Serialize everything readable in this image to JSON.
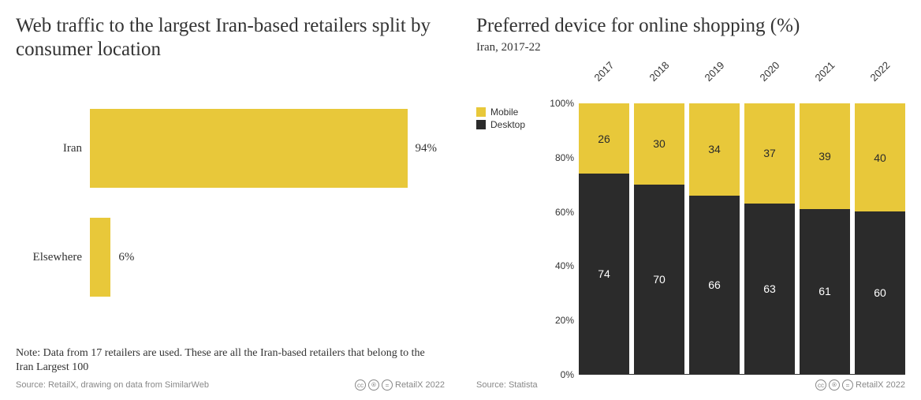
{
  "colors": {
    "mobile": "#e8c83a",
    "desktop": "#2b2b2b",
    "text": "#333333",
    "mobile_label": "#2b2b2b",
    "desktop_label": "#ffffff",
    "footer_text": "#888888",
    "background": "#ffffff"
  },
  "left": {
    "title": "Web traffic to the largest Iran-based retailers split by consumer location",
    "type": "horizontal_bar",
    "bar_color": "#e8c83a",
    "max_value": 100,
    "bars": [
      {
        "category": "Iran",
        "value": 94,
        "label": "94%"
      },
      {
        "category": "Elsewhere",
        "value": 6,
        "label": "6%"
      }
    ],
    "note": "Note: Data from 17 retailers are used. These are all the Iran-based retailers that belong to the Iran Largest 100",
    "source": "Source: RetailX, drawing on data from SimilarWeb",
    "attribution": "RetailX 2022"
  },
  "right": {
    "title": "Preferred device for online shopping (%)",
    "subtitle": "Iran, 2017-22",
    "type": "stacked_column_100",
    "legend": [
      {
        "name": "Mobile",
        "color": "#e8c83a"
      },
      {
        "name": "Desktop",
        "color": "#2b2b2b"
      }
    ],
    "y_ticks": [
      "0%",
      "20%",
      "40%",
      "60%",
      "80%",
      "100%"
    ],
    "categories": [
      "2017",
      "2018",
      "2019",
      "2020",
      "2021",
      "2022"
    ],
    "series": {
      "mobile": [
        26,
        30,
        34,
        37,
        39,
        40
      ],
      "desktop": [
        74,
        70,
        66,
        63,
        61,
        60
      ]
    },
    "source": "Source: Statista",
    "attribution": "RetailX 2022"
  }
}
